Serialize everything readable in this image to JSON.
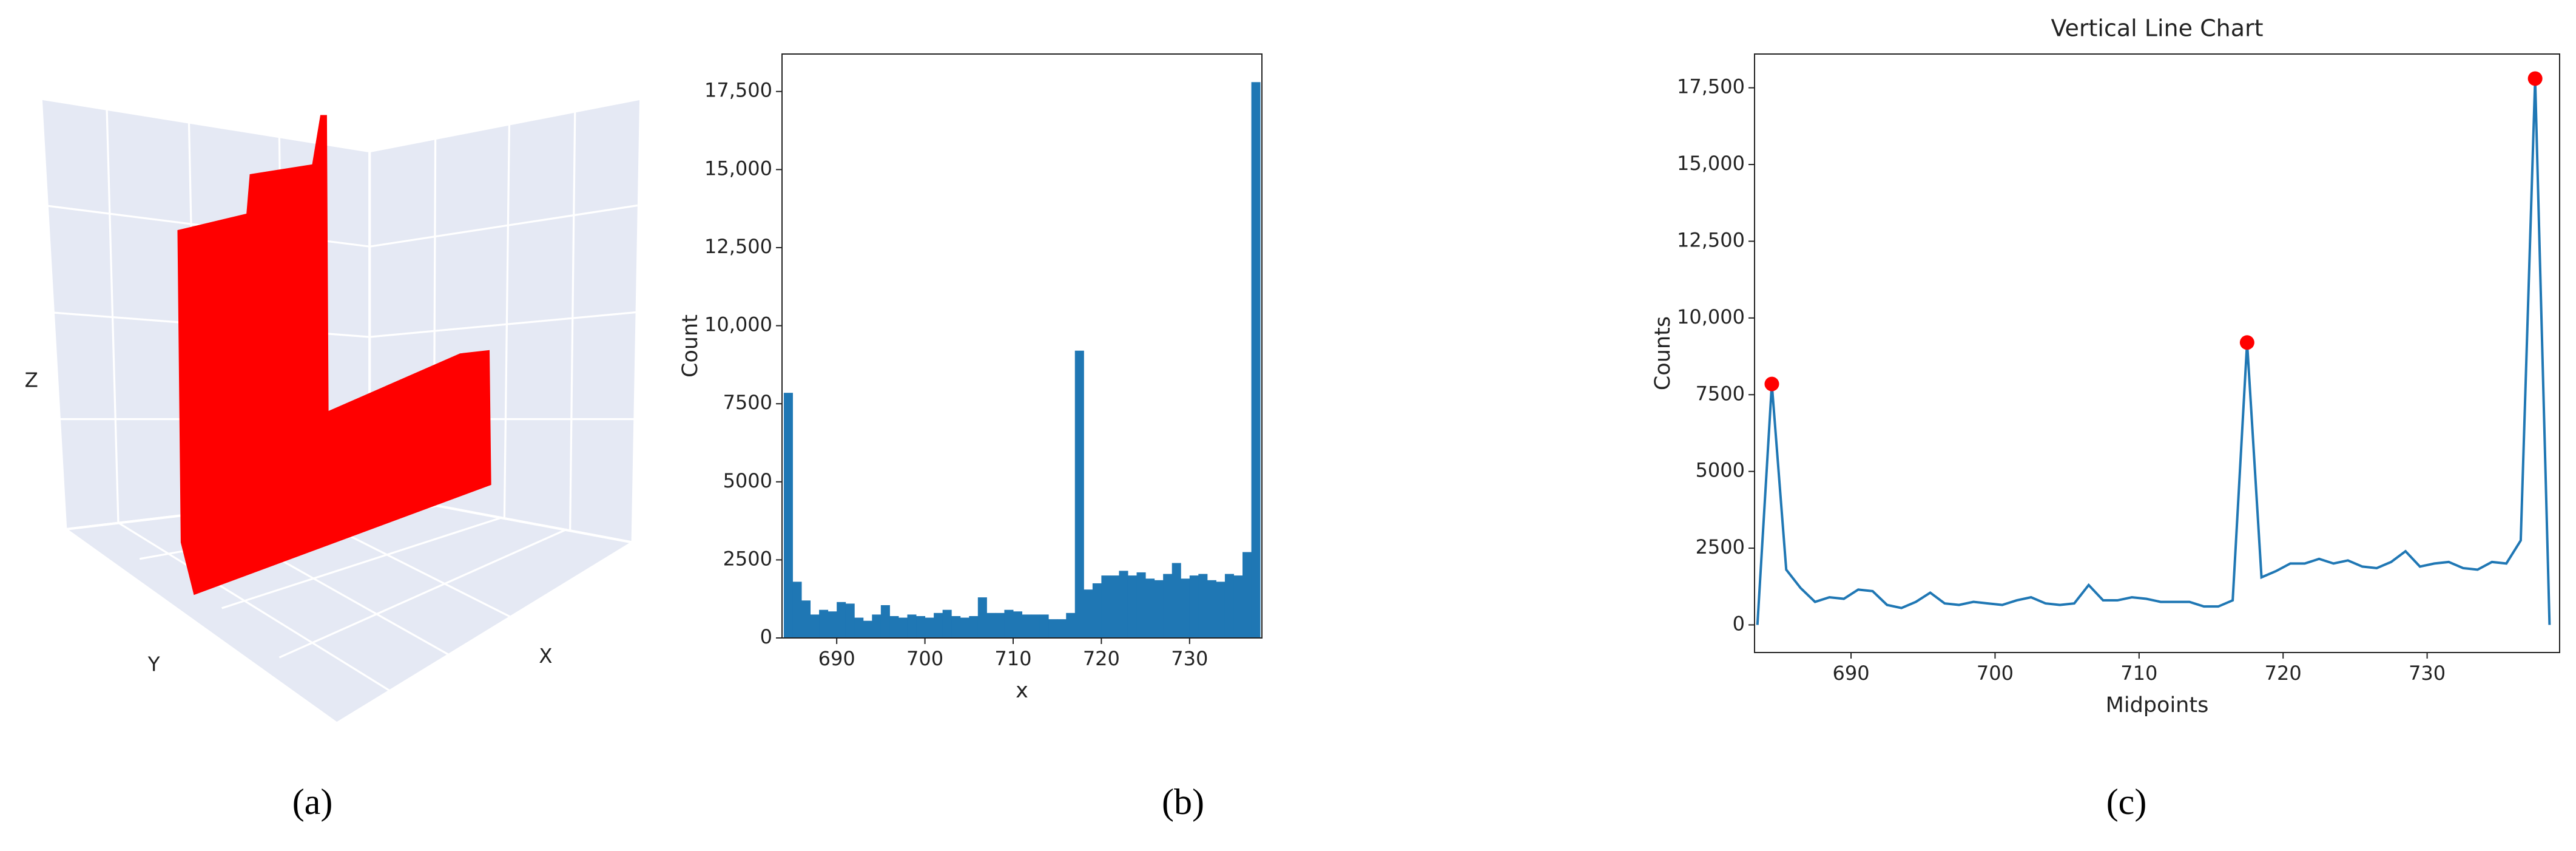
{
  "chart_data": [
    {
      "type": "scatter3d",
      "caption": "(a)",
      "xlabel": "X",
      "ylabel": "Y",
      "zlabel": "Z",
      "color": "#ff0000"
    },
    {
      "type": "histogram",
      "caption": "(b)",
      "xlabel": "x",
      "ylabel": "Count",
      "color": "#1f77b4",
      "bins": [
        684,
        685,
        686,
        687,
        688,
        689,
        690,
        691,
        692,
        693,
        694,
        695,
        696,
        697,
        698,
        699,
        700,
        701,
        702,
        703,
        704,
        705,
        706,
        707,
        708,
        709,
        710,
        711,
        712,
        713,
        714,
        715,
        716,
        717,
        718,
        719,
        720,
        721,
        722,
        723,
        724,
        725,
        726,
        727,
        728,
        729,
        730,
        731,
        732,
        733,
        734,
        735,
        736,
        737,
        738
      ],
      "values": [
        7850,
        1800,
        1200,
        750,
        900,
        850,
        1150,
        1100,
        650,
        550,
        750,
        1050,
        700,
        650,
        750,
        700,
        650,
        800,
        900,
        700,
        650,
        700,
        1300,
        800,
        800,
        900,
        850,
        750,
        750,
        750,
        600,
        600,
        800,
        9200,
        1550,
        1750,
        2000,
        2000,
        2150,
        2000,
        2100,
        1900,
        1850,
        2050,
        2400,
        1900,
        2000,
        2050,
        1850,
        1800,
        2050,
        2000,
        2750,
        17800
      ],
      "xlim": [
        683.8,
        738.2
      ],
      "xticks": [
        690,
        700,
        710,
        720,
        730
      ],
      "ylim": [
        0,
        18700
      ],
      "yticks": [
        0,
        2500,
        5000,
        7500,
        {
          "value": 10000,
          "label": "10,000"
        },
        {
          "value": 12500,
          "label": "12,500"
        },
        {
          "value": 15000,
          "label": "15,000"
        },
        {
          "value": 17500,
          "label": "17,500"
        }
      ]
    },
    {
      "type": "line",
      "caption": "(c)",
      "title": "Vertical Line Chart",
      "xlabel": "Midpoints",
      "ylabel": "Counts",
      "color": "#1f77b4",
      "x": [
        683.5,
        684.5,
        685.5,
        686.5,
        687.5,
        688.5,
        689.5,
        690.5,
        691.5,
        692.5,
        693.5,
        694.5,
        695.5,
        696.5,
        697.5,
        698.5,
        699.5,
        700.5,
        701.5,
        702.5,
        703.5,
        704.5,
        705.5,
        706.5,
        707.5,
        708.5,
        709.5,
        710.5,
        711.5,
        712.5,
        713.5,
        714.5,
        715.5,
        716.5,
        717.5,
        718.5,
        719.5,
        720.5,
        721.5,
        722.5,
        723.5,
        724.5,
        725.5,
        726.5,
        727.5,
        728.5,
        729.5,
        730.5,
        731.5,
        732.5,
        733.5,
        734.5,
        735.5,
        736.5,
        737.5,
        738.5
      ],
      "values": [
        0,
        7850,
        1800,
        1200,
        750,
        900,
        850,
        1150,
        1100,
        650,
        550,
        750,
        1050,
        700,
        650,
        750,
        700,
        650,
        800,
        900,
        700,
        650,
        700,
        1300,
        800,
        800,
        900,
        850,
        750,
        750,
        750,
        600,
        600,
        800,
        9200,
        1550,
        1750,
        2000,
        2000,
        2150,
        2000,
        2100,
        1900,
        1850,
        2050,
        2400,
        1900,
        2000,
        2050,
        1850,
        1800,
        2050,
        2000,
        2750,
        17800,
        0
      ],
      "peaks": {
        "color": "#ff0000",
        "x": [
          684.5,
          717.5,
          737.5
        ],
        "values": [
          7850,
          9200,
          17800
        ]
      },
      "xlim": [
        683.3,
        739.2
      ],
      "xticks": [
        690,
        700,
        710,
        720,
        730
      ],
      "ylim": [
        -900,
        18600
      ],
      "yticks": [
        0,
        2500,
        5000,
        7500,
        {
          "value": 10000,
          "label": "10,000"
        },
        {
          "value": 12500,
          "label": "12,500"
        },
        {
          "value": 15000,
          "label": "15,000"
        },
        {
          "value": 17500,
          "label": "17,500"
        }
      ]
    }
  ]
}
